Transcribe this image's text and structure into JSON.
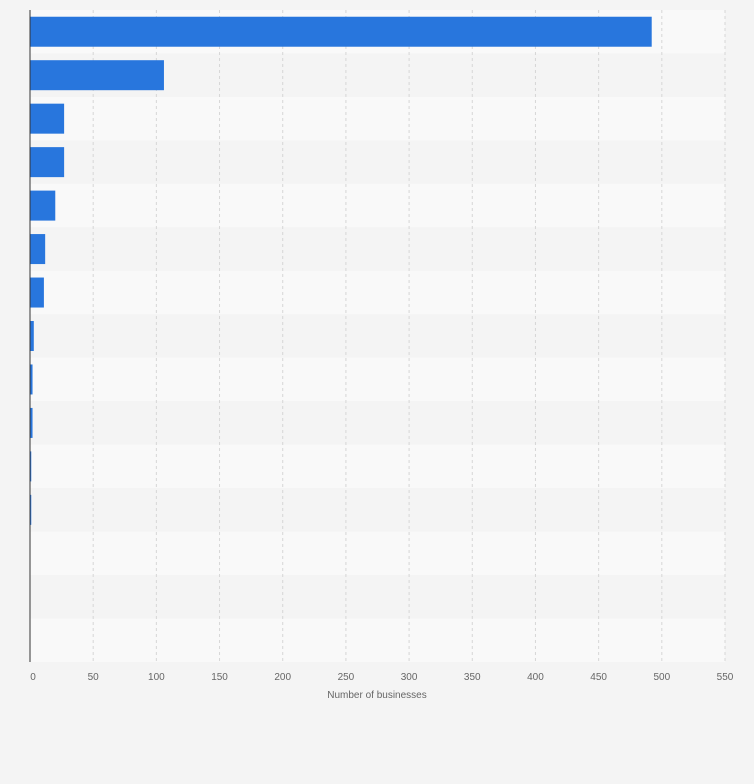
{
  "chart_data": {
    "type": "bar",
    "orientation": "horizontal",
    "categories": [
      "",
      "",
      "",
      "",
      "",
      "",
      "",
      "",
      "",
      "",
      "",
      "",
      "",
      "",
      ""
    ],
    "values": [
      492,
      106,
      27,
      27,
      20,
      12,
      11,
      3,
      2,
      2,
      1,
      1,
      0,
      0,
      0
    ],
    "title": "",
    "xlabel": "Number of businesses",
    "ylabel": "",
    "xlim": [
      0,
      550
    ],
    "xticks": [
      0,
      50,
      100,
      150,
      200,
      250,
      300,
      350,
      400,
      450,
      500,
      550
    ],
    "grid": true,
    "legend": "none"
  },
  "colors": {
    "bar": "#2876dd",
    "band_light": "#f9f9f9",
    "band_dark": "#f4f4f4",
    "grid": "#d6d6d6",
    "axis": "#333333",
    "tick_text": "#666666"
  }
}
